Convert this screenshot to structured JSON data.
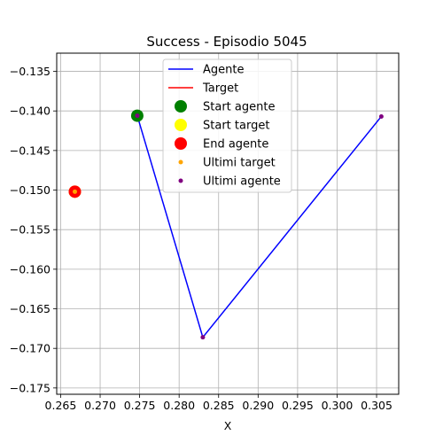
{
  "chart_data": {
    "type": "line",
    "title": "Success - Episodio 5045",
    "xlabel": "X",
    "ylabel": "",
    "xlim": [
      0.2645,
      0.3078
    ],
    "ylim": [
      -0.1758,
      -0.1327
    ],
    "grid": true,
    "legend_position": "top-center",
    "xticks": [
      0.265,
      0.27,
      0.275,
      0.28,
      0.285,
      0.29,
      0.295,
      0.3,
      0.305
    ],
    "xtick_labels": [
      "0.265",
      "0.270",
      "0.275",
      "0.280",
      "0.285",
      "0.290",
      "0.295",
      "0.300",
      "0.305"
    ],
    "yticks": [
      -0.135,
      -0.14,
      -0.145,
      -0.15,
      -0.155,
      -0.16,
      -0.165,
      -0.17,
      -0.175
    ],
    "ytick_labels": [
      "−0.135",
      "−0.140",
      "−0.145",
      "−0.150",
      "−0.155",
      "−0.160",
      "−0.165",
      "−0.170",
      "−0.175"
    ],
    "series": [
      {
        "name": "Agente",
        "kind": "line",
        "color": "#0000ff",
        "x": [
          0.2747,
          0.283,
          0.3056
        ],
        "y": [
          -0.1406,
          -0.1686,
          -0.1407
        ]
      },
      {
        "name": "Target",
        "kind": "line",
        "color": "#ff0000",
        "x": [
          0.2668,
          0.2668
        ],
        "y": [
          -0.1502,
          -0.1502
        ]
      },
      {
        "name": "Start agente",
        "kind": "scatter",
        "color": "#008000",
        "marker": "large",
        "x": [
          0.2747
        ],
        "y": [
          -0.1406
        ]
      },
      {
        "name": "Start target",
        "kind": "scatter",
        "color": "#ffff00",
        "marker": "large",
        "x": [
          0.2668
        ],
        "y": [
          -0.1502
        ]
      },
      {
        "name": "End agente",
        "kind": "scatter",
        "color": "#ff0000",
        "marker": "large",
        "x": [
          0.2668
        ],
        "y": [
          -0.1502
        ]
      },
      {
        "name": "Ultimi target",
        "kind": "scatter",
        "color": "#ffa500",
        "marker": "small",
        "x": [
          0.2668
        ],
        "y": [
          -0.1502
        ]
      },
      {
        "name": "Ultimi agente",
        "kind": "scatter",
        "color": "#800080",
        "marker": "small",
        "x": [
          0.2747,
          0.283,
          0.3056
        ],
        "y": [
          -0.1406,
          -0.1686,
          -0.1407
        ]
      }
    ]
  }
}
